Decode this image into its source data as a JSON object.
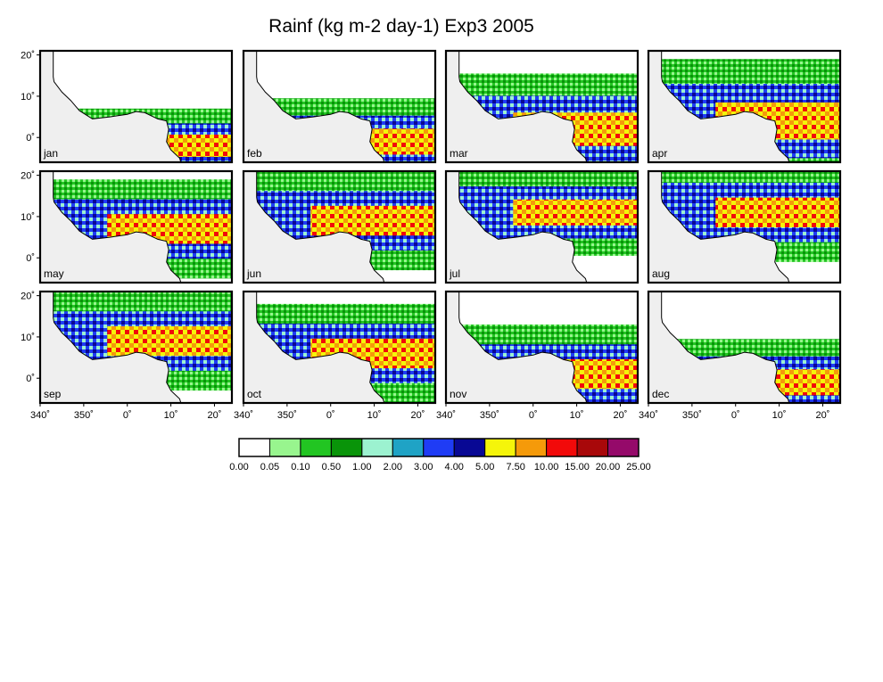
{
  "title": "Rainf (kg m-2 day-1) Exp3 2005",
  "map": {
    "lat_ticks": [
      "20˚",
      "10˚",
      "0˚"
    ],
    "lon_ticks": [
      "340˚",
      "350˚",
      "0˚",
      "10˚",
      "20˚"
    ],
    "extent": {
      "lon_min": -20,
      "lon_max": 24,
      "lat_min": -6,
      "lat_max": 21
    },
    "land_outline": [
      [
        -17,
        21
      ],
      [
        -17,
        14.7
      ],
      [
        -16.8,
        13.5
      ],
      [
        -15,
        11
      ],
      [
        -13,
        9
      ],
      [
        -11,
        6.5
      ],
      [
        -8,
        4.5
      ],
      [
        -4,
        5
      ],
      [
        0,
        5.6
      ],
      [
        2,
        6.3
      ],
      [
        4,
        6
      ],
      [
        7,
        4.5
      ],
      [
        9,
        4
      ],
      [
        9.5,
        2
      ],
      [
        9,
        -1
      ],
      [
        10,
        -3
      ],
      [
        11,
        -4
      ],
      [
        12,
        -5
      ],
      [
        12.3,
        -6
      ],
      [
        24,
        -6
      ],
      [
        24,
        21
      ]
    ]
  },
  "panels": [
    {
      "month": "jan"
    },
    {
      "month": "feb"
    },
    {
      "month": "mar"
    },
    {
      "month": "apr"
    },
    {
      "month": "may"
    },
    {
      "month": "jun"
    },
    {
      "month": "jul"
    },
    {
      "month": "aug"
    },
    {
      "month": "sep"
    },
    {
      "month": "oct"
    },
    {
      "month": "nov"
    },
    {
      "month": "dec"
    }
  ],
  "colorbar": {
    "labels": [
      "0.00",
      "0.05",
      "0.10",
      "0.50",
      "1.00",
      "2.00",
      "3.00",
      "4.00",
      "5.00",
      "7.50",
      "10.00",
      "15.00",
      "20.00",
      "25.00"
    ],
    "colors": [
      "#ffffff",
      "#98f58e",
      "#22c522",
      "#099409",
      "#9cf2d0",
      "#1fa3c5",
      "#1f3cf5",
      "#080894",
      "#f5f50a",
      "#f59a0a",
      "#f20a0a",
      "#a8080a",
      "#950a6a"
    ]
  }
}
